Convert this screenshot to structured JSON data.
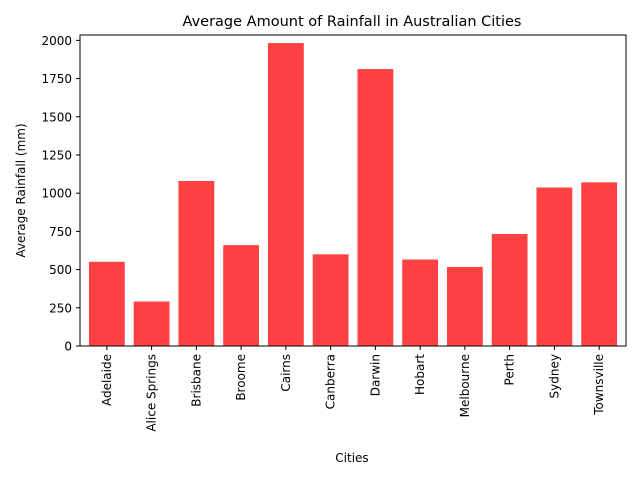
{
  "chart_data": {
    "type": "bar",
    "title": "Average Amount of Rainfall in Australian Cities",
    "xlabel": "Cities",
    "ylabel": "Average Rainfall (mm)",
    "categories": [
      "Adelaide",
      "Alice Springs",
      "Brisbane",
      "Broome",
      "Cairns",
      "Canberra",
      "Darwin",
      "Hobart",
      "Melbourne",
      "Perth",
      "Sydney",
      "Townsville"
    ],
    "values": [
      551,
      291,
      1080,
      660,
      1982,
      600,
      1812,
      566,
      517,
      733,
      1037,
      1071
    ],
    "ylim": [
      0,
      2035
    ],
    "yticks": [
      0,
      250,
      500,
      750,
      1000,
      1250,
      1500,
      1750,
      2000
    ],
    "bar_color": "#ff4144",
    "grid": false,
    "legend": false
  }
}
